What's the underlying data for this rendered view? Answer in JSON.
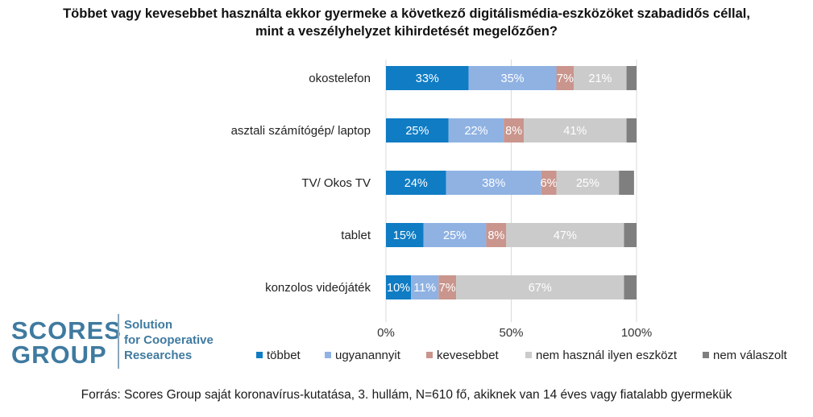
{
  "title": {
    "line1": "Többet vagy kevesebbet használta ekkor gyermeke a következő digitálismédia-eszközöket szabadidős céllal,",
    "line2": "mint a veszélyhelyzet kihirdetését megelőzően?"
  },
  "logo": {
    "word1": "SCORES",
    "word2": "GROUP",
    "tag1": "Solution",
    "tag2": "for Cooperative",
    "tag3": "Researches"
  },
  "source": "Forrás: Scores Group saját koronavírus-kutatása, 3. hullám, N=610 fő, akiknek van 14 éves vagy fiatalabb gyermekük",
  "colors": {
    "tobbet": "#0f7cc4",
    "ugyanannyit": "#8fb2e3",
    "kevesebbet": "#c9958d",
    "nem_hasznal": "#cbcbcb",
    "nem_valaszolt": "#7f7f7f"
  },
  "chart_data": {
    "type": "bar",
    "orientation": "horizontal",
    "stacked": true,
    "percent": true,
    "categories": [
      "okostelefon",
      "asztali számítógép/ laptop",
      "TV/ Okos TV",
      "tablet",
      "konzolos videójáték"
    ],
    "series": [
      {
        "name": "többet",
        "values": [
          33,
          25,
          24,
          15,
          10
        ],
        "labels": [
          "33%",
          "25%",
          "24%",
          "15%",
          "10%"
        ]
      },
      {
        "name": "ugyanannyit",
        "values": [
          35,
          22,
          38,
          25,
          11
        ],
        "labels": [
          "35%",
          "22%",
          "38%",
          "25%",
          "11%"
        ]
      },
      {
        "name": "kevesebbet",
        "values": [
          7,
          8,
          6,
          8,
          7
        ],
        "labels": [
          "7%",
          "8%",
          "6%",
          "8%",
          "7%"
        ]
      },
      {
        "name": "nem használ ilyen eszközt",
        "values": [
          21,
          41,
          25,
          47,
          67
        ],
        "labels": [
          "21%",
          "41%",
          "25%",
          "47%",
          "67%"
        ]
      },
      {
        "name": "nem válaszolt",
        "values": [
          4,
          4,
          6,
          5,
          5
        ],
        "labels": [
          "",
          "",
          "",
          "",
          ""
        ]
      }
    ],
    "xlim": [
      0,
      100
    ],
    "xticks": [
      "0%",
      "50%",
      "100%"
    ],
    "legend_position": "bottom"
  }
}
